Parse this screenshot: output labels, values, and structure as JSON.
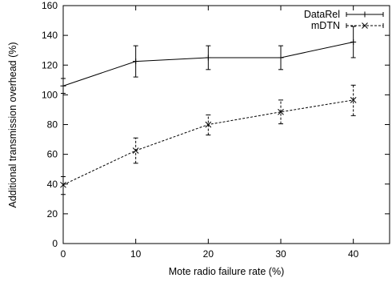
{
  "chart_data": {
    "type": "line",
    "xlabel": "Mote radio failure rate (%)",
    "ylabel": "Additional transmission overhead (%)",
    "xlim": [
      0,
      45
    ],
    "ylim": [
      0,
      160
    ],
    "x_ticks": [
      0,
      10,
      20,
      30,
      40
    ],
    "y_ticks": [
      0,
      20,
      40,
      60,
      80,
      100,
      120,
      140,
      160
    ],
    "grid": false,
    "legend_position": "top-right",
    "series": [
      {
        "name": "DataRel",
        "style": "solid",
        "marker": "plus",
        "color": "#000000",
        "x": [
          0,
          10,
          20,
          30,
          40
        ],
        "y": [
          106,
          122.5,
          125,
          125,
          135.5
        ],
        "error": [
          [
            101,
            111
          ],
          [
            112,
            133
          ],
          [
            117,
            133
          ],
          [
            117,
            133
          ],
          [
            125,
            146
          ]
        ]
      },
      {
        "name": "mDTN",
        "style": "dashed",
        "marker": "x",
        "color": "#000000",
        "x": [
          0,
          10,
          20,
          30,
          40
        ],
        "y": [
          39.5,
          62.5,
          80,
          88.5,
          96.5
        ],
        "error": [
          [
            33,
            45
          ],
          [
            54,
            71
          ],
          [
            73,
            86.5
          ],
          [
            80.5,
            96.5
          ],
          [
            86,
            106.5
          ]
        ]
      }
    ]
  }
}
